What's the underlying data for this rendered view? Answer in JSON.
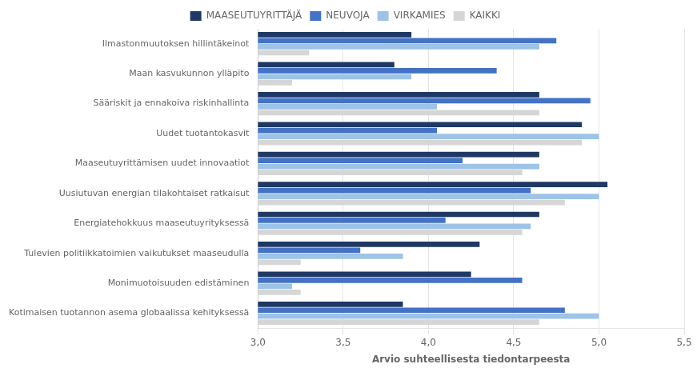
{
  "chart_data": {
    "type": "bar",
    "orientation": "horizontal",
    "xlabel": "Arvio suhteellisesta tiedontarpeesta",
    "categories": [
      "Ilmastonmuutoksen hillintäkeinot",
      "Maan kasvukunnon ylläpito",
      "Sääriskit ja ennakoiva riskinhallinta",
      "Uudet tuotantokasvit",
      "Maaseutuyrittämisen uudet innovaatiot",
      "Uusiutuvan energian tilakohtaiset ratkaisut",
      "Energiatehokkuus maaseutuyrityksessä",
      "Tulevien politiikkatoimien vaikutukset maaseudulla",
      "Monimuotoisuuden edistäminen",
      "Kotimaisen tuotannon asema globaalissa kehityksessä"
    ],
    "series": [
      {
        "name": "MAASEUTUYRITTÄJÄ",
        "color": "#1F3864",
        "values": [
          3.9,
          3.8,
          4.65,
          4.9,
          4.65,
          5.05,
          4.65,
          4.3,
          4.25,
          3.85
        ]
      },
      {
        "name": "NEUVOJA",
        "color": "#4472C4",
        "values": [
          4.75,
          4.4,
          4.95,
          4.05,
          4.2,
          4.6,
          4.1,
          3.6,
          4.55,
          4.8
        ]
      },
      {
        "name": "VIRKAMIES",
        "color": "#9DC3E6",
        "values": [
          4.65,
          3.9,
          4.05,
          5.0,
          4.65,
          5.0,
          4.6,
          3.85,
          3.2,
          5.0
        ]
      },
      {
        "name": "KAIKKI",
        "color": "#D6D6D6",
        "values": [
          3.3,
          3.2,
          4.65,
          4.9,
          4.55,
          4.8,
          4.55,
          3.25,
          3.25,
          4.65
        ]
      }
    ],
    "xlim": [
      3.0,
      5.5
    ],
    "xticks": [
      {
        "value": 3.0,
        "label": "3,0"
      },
      {
        "value": 3.5,
        "label": "3,5"
      },
      {
        "value": 4.0,
        "label": "4,0"
      },
      {
        "value": 4.5,
        "label": "4,5"
      },
      {
        "value": 5.0,
        "label": "5,0"
      },
      {
        "value": 5.5,
        "label": "5,5"
      }
    ],
    "grid": true,
    "legend": "top"
  }
}
